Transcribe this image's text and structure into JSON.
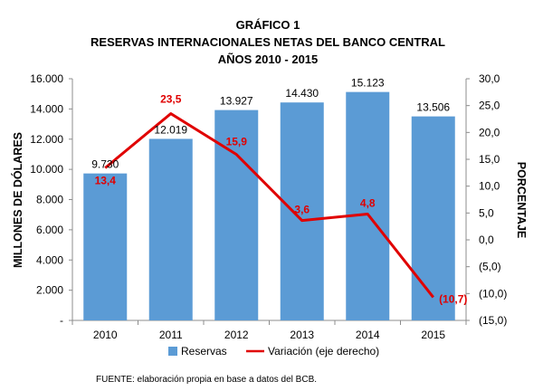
{
  "chart_data": {
    "type": "bar",
    "title_lines": [
      "GRÁFICO 1",
      "RESERVAS INTERNACIONALES NETAS DEL BANCO CENTRAL",
      "AÑOS 2010 - 2015"
    ],
    "categories": [
      "2010",
      "2011",
      "2012",
      "2013",
      "2014",
      "2015"
    ],
    "series": [
      {
        "name": "Reservas",
        "type": "bar",
        "axis": "left",
        "values": [
          9730,
          12019,
          13927,
          14430,
          15123,
          13506
        ],
        "labels": [
          "9.730",
          "12.019",
          "13.927",
          "14.430",
          "15.123",
          "13.506"
        ],
        "color": "#5b9bd5"
      },
      {
        "name": "Variación (eje derecho)",
        "type": "line",
        "axis": "right",
        "values": [
          13.4,
          23.5,
          15.9,
          3.6,
          4.8,
          -10.7
        ],
        "labels": [
          "13,4",
          "23,5",
          "15,9",
          "3,6",
          "4,8",
          "(10,7)"
        ],
        "color": "#e00000"
      }
    ],
    "ylabel": "MILLONES DE DÓLARES",
    "ylim": [
      0,
      16000
    ],
    "yticks": [
      "-",
      "2.000",
      "4.000",
      "6.000",
      "8.000",
      "10.000",
      "12.000",
      "14.000",
      "16.000"
    ],
    "y2label": "PORCENTAJE",
    "y2lim": [
      -15,
      30
    ],
    "y2ticks": [
      "(15,0)",
      "(10,0)",
      "(5,0)",
      "0,0",
      "5,0",
      "10,0",
      "15,0",
      "20,0",
      "25,0",
      "30,0"
    ],
    "grid": false,
    "legend_position": "bottom",
    "source": "FUENTE: elaboración propia en base a datos del BCB."
  }
}
